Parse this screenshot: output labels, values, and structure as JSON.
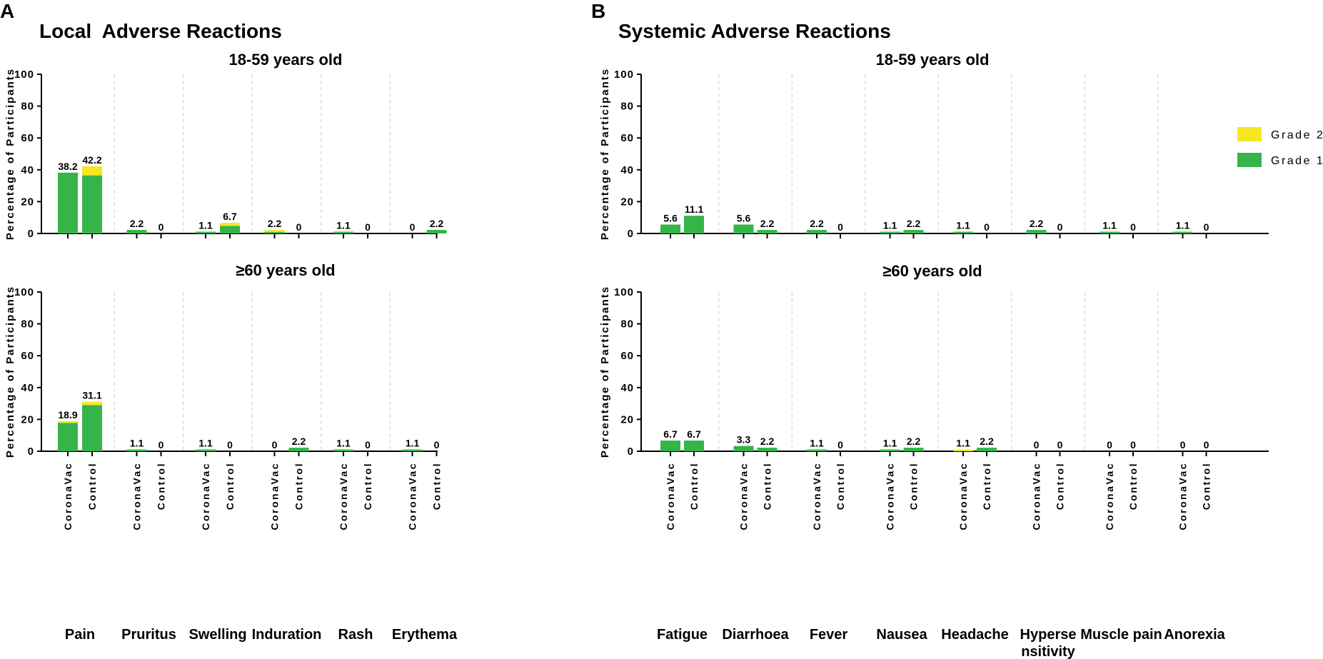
{
  "panels": {
    "A": {
      "letter": "A",
      "title": "Local  Adverse Reactions"
    },
    "B": {
      "letter": "B",
      "title": "Systemic Adverse Reactions"
    }
  },
  "legend": [
    {
      "name": "Grade 2",
      "color": "#f7e623"
    },
    {
      "name": "Grade 1",
      "color": "#35b449"
    }
  ],
  "colors": {
    "grade1": "#35b449",
    "grade2": "#f7e623",
    "axis": "#000000",
    "separator": "#cccccc"
  },
  "chart_data": [
    {
      "type": "bar",
      "panel": "A",
      "title": "18-59 years old",
      "ylabel": "Percentage of Participants",
      "ylim": [
        0,
        100
      ],
      "yticks": [
        0,
        20,
        40,
        60,
        80,
        100
      ],
      "categories": [
        "Pain",
        "Pruritus",
        "Swelling",
        "Induration",
        "Rash",
        "Erythema"
      ],
      "groups": [
        "CoronaVac",
        "Control"
      ],
      "series": [
        {
          "name": "Grade 1",
          "values": [
            [
              38.2,
              36.5
            ],
            [
              2.2,
              0
            ],
            [
              1.1,
              4.7
            ],
            [
              1.0,
              0
            ],
            [
              1.1,
              0
            ],
            [
              0,
              2.2
            ]
          ]
        },
        {
          "name": "Grade 2",
          "values": [
            [
              0,
              5.7
            ],
            [
              0,
              0
            ],
            [
              0,
              2.0
            ],
            [
              1.2,
              0
            ],
            [
              0,
              0
            ],
            [
              0,
              0
            ]
          ]
        }
      ],
      "totals": [
        [
          "38.2",
          "42.2"
        ],
        [
          "2.2",
          "0"
        ],
        [
          "1.1",
          "6.7"
        ],
        [
          "2.2",
          "0"
        ],
        [
          "1.1",
          "0"
        ],
        [
          "0",
          "2.2"
        ]
      ]
    },
    {
      "type": "bar",
      "panel": "A",
      "title": "≥60 years old",
      "ylabel": "Percentage of Participants",
      "ylim": [
        0,
        100
      ],
      "yticks": [
        0,
        20,
        40,
        60,
        80,
        100
      ],
      "categories": [
        "Pain",
        "Pruritus",
        "Swelling",
        "Induration",
        "Rash",
        "Erythema"
      ],
      "groups": [
        "CoronaVac",
        "Control"
      ],
      "series": [
        {
          "name": "Grade 1",
          "values": [
            [
              17.8,
              29.0
            ],
            [
              1.1,
              0
            ],
            [
              1.1,
              0
            ],
            [
              0,
              2.2
            ],
            [
              1.1,
              0
            ],
            [
              1.1,
              0
            ]
          ]
        },
        {
          "name": "Grade 2",
          "values": [
            [
              1.1,
              2.1
            ],
            [
              0,
              0
            ],
            [
              0,
              0
            ],
            [
              0,
              0
            ],
            [
              0,
              0
            ],
            [
              0,
              0
            ]
          ]
        }
      ],
      "totals": [
        [
          "18.9",
          "31.1"
        ],
        [
          "1.1",
          "0"
        ],
        [
          "1.1",
          "0"
        ],
        [
          "0",
          "2.2"
        ],
        [
          "1.1",
          "0"
        ],
        [
          "1.1",
          "0"
        ]
      ]
    },
    {
      "type": "bar",
      "panel": "B",
      "title": "18-59 years old",
      "ylabel": "Percentage of Participants",
      "ylim": [
        0,
        100
      ],
      "yticks": [
        0,
        20,
        40,
        60,
        80,
        100
      ],
      "categories": [
        "Fatigue",
        "Diarrhoea",
        "Fever",
        "Nausea",
        "Headache",
        "Hyperse nsitivity",
        "Muscle pain",
        "Anorexia"
      ],
      "groups": [
        "CoronaVac",
        "Control"
      ],
      "series": [
        {
          "name": "Grade 1",
          "values": [
            [
              5.6,
              11.1
            ],
            [
              5.6,
              2.2
            ],
            [
              2.2,
              0
            ],
            [
              1.1,
              2.2
            ],
            [
              1.1,
              0
            ],
            [
              2.2,
              0
            ],
            [
              1.1,
              0
            ],
            [
              1.1,
              0
            ]
          ]
        },
        {
          "name": "Grade 2",
          "values": [
            [
              0,
              0
            ],
            [
              0,
              0
            ],
            [
              0,
              0
            ],
            [
              0,
              0
            ],
            [
              0,
              0
            ],
            [
              0,
              0
            ],
            [
              0,
              0
            ],
            [
              0,
              0
            ]
          ]
        }
      ],
      "totals": [
        [
          "5.6",
          "11.1"
        ],
        [
          "5.6",
          "2.2"
        ],
        [
          "2.2",
          "0"
        ],
        [
          "1.1",
          "2.2"
        ],
        [
          "1.1",
          "0"
        ],
        [
          "2.2",
          "0"
        ],
        [
          "1.1",
          "0"
        ],
        [
          "1.1",
          "0"
        ]
      ]
    },
    {
      "type": "bar",
      "panel": "B",
      "title": "≥60 years old",
      "ylabel": "Percentage of Participants",
      "ylim": [
        0,
        100
      ],
      "yticks": [
        0,
        20,
        40,
        60,
        80,
        100
      ],
      "categories": [
        "Fatigue",
        "Diarrhoea",
        "Fever",
        "Nausea",
        "Headache",
        "Hyperse nsitivity",
        "Muscle pain",
        "Anorexia"
      ],
      "groups": [
        "CoronaVac",
        "Control"
      ],
      "series": [
        {
          "name": "Grade 1",
          "values": [
            [
              6.7,
              6.7
            ],
            [
              3.3,
              2.2
            ],
            [
              1.1,
              0
            ],
            [
              1.1,
              2.2
            ],
            [
              0,
              2.2
            ],
            [
              0,
              0
            ],
            [
              0,
              0
            ],
            [
              0,
              0
            ]
          ]
        },
        {
          "name": "Grade 2",
          "values": [
            [
              0,
              0
            ],
            [
              0,
              0
            ],
            [
              0,
              0
            ],
            [
              0,
              0
            ],
            [
              1.1,
              0
            ],
            [
              0,
              0
            ],
            [
              0,
              0
            ],
            [
              0,
              0
            ]
          ]
        }
      ],
      "totals": [
        [
          "6.7",
          "6.7"
        ],
        [
          "3.3",
          "2.2"
        ],
        [
          "1.1",
          "0"
        ],
        [
          "1.1",
          "2.2"
        ],
        [
          "1.1",
          "2.2"
        ],
        [
          "0",
          "0"
        ],
        [
          "0",
          "0"
        ],
        [
          "0",
          "0"
        ]
      ]
    }
  ]
}
